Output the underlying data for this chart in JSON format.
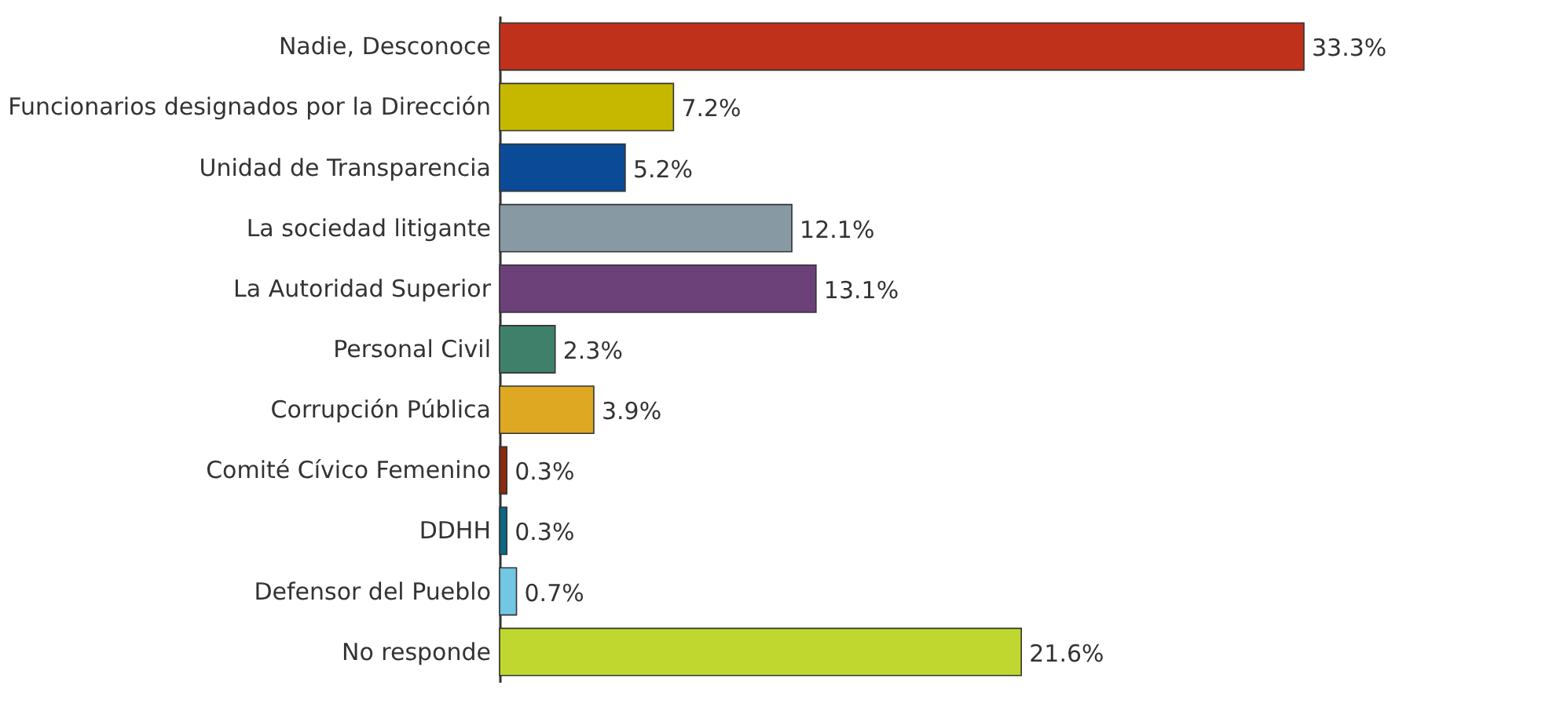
{
  "chart_data": {
    "type": "bar",
    "orientation": "horizontal",
    "categories": [
      "Nadie, Desconoce",
      "Funcionarios designados por la Dirección",
      "Unidad de Transparencia",
      "La sociedad litigante",
      "La Autoridad Superior",
      "Personal Civil",
      "Corrupción Pública",
      "Comité Cívico Femenino",
      "DDHH",
      "Defensor del Pueblo",
      "No responde"
    ],
    "values": [
      33.3,
      7.2,
      5.2,
      12.1,
      13.1,
      2.3,
      3.9,
      0.3,
      0.3,
      0.7,
      21.6
    ],
    "colors": [
      "#bf311b",
      "#c6b800",
      "#0b4a96",
      "#8799a3",
      "#6c4079",
      "#3f806b",
      "#dea823",
      "#8a2b12",
      "#0c6781",
      "#73c7e3",
      "#c0d72f"
    ],
    "value_labels": [
      "33.3%",
      "7.2%",
      "5.2%",
      "12.1%",
      "13.1%",
      "2.3%",
      "3.9%",
      "0.3%",
      "0.3%",
      "0.7%",
      "21.6%"
    ],
    "grid": false
  }
}
